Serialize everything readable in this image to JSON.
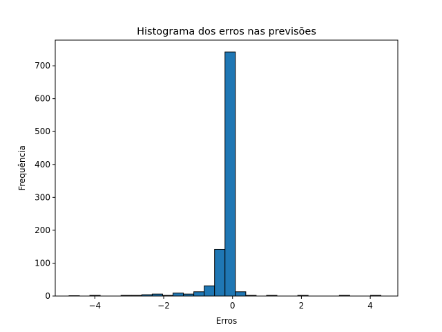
{
  "chart_data": {
    "type": "bar",
    "title": "Histograma dos erros nas previsões",
    "xlabel": "Erros",
    "ylabel": "Frequência",
    "xlim": [
      -5.15,
      4.8
    ],
    "ylim": [
      0,
      778
    ],
    "bin_start": -4.75,
    "bin_width": 0.302,
    "values": [
      1,
      0,
      2,
      0,
      0,
      2,
      2,
      4,
      6,
      2,
      9,
      6,
      13,
      31,
      142,
      742,
      13,
      2,
      0,
      2,
      0,
      0,
      2,
      0,
      0,
      0,
      2,
      0,
      0,
      2
    ],
    "xticks": [
      -4,
      -2,
      0,
      2,
      4
    ],
    "xtick_labels": [
      "−4",
      "−2",
      "0",
      "2",
      "4"
    ],
    "yticks": [
      0,
      100,
      200,
      300,
      400,
      500,
      600,
      700
    ],
    "ytick_labels": [
      "0",
      "100",
      "200",
      "300",
      "400",
      "500",
      "600",
      "700"
    ],
    "bar_color": "#1f77b4",
    "edge_color": "#000000",
    "grid": false,
    "legend": false
  }
}
